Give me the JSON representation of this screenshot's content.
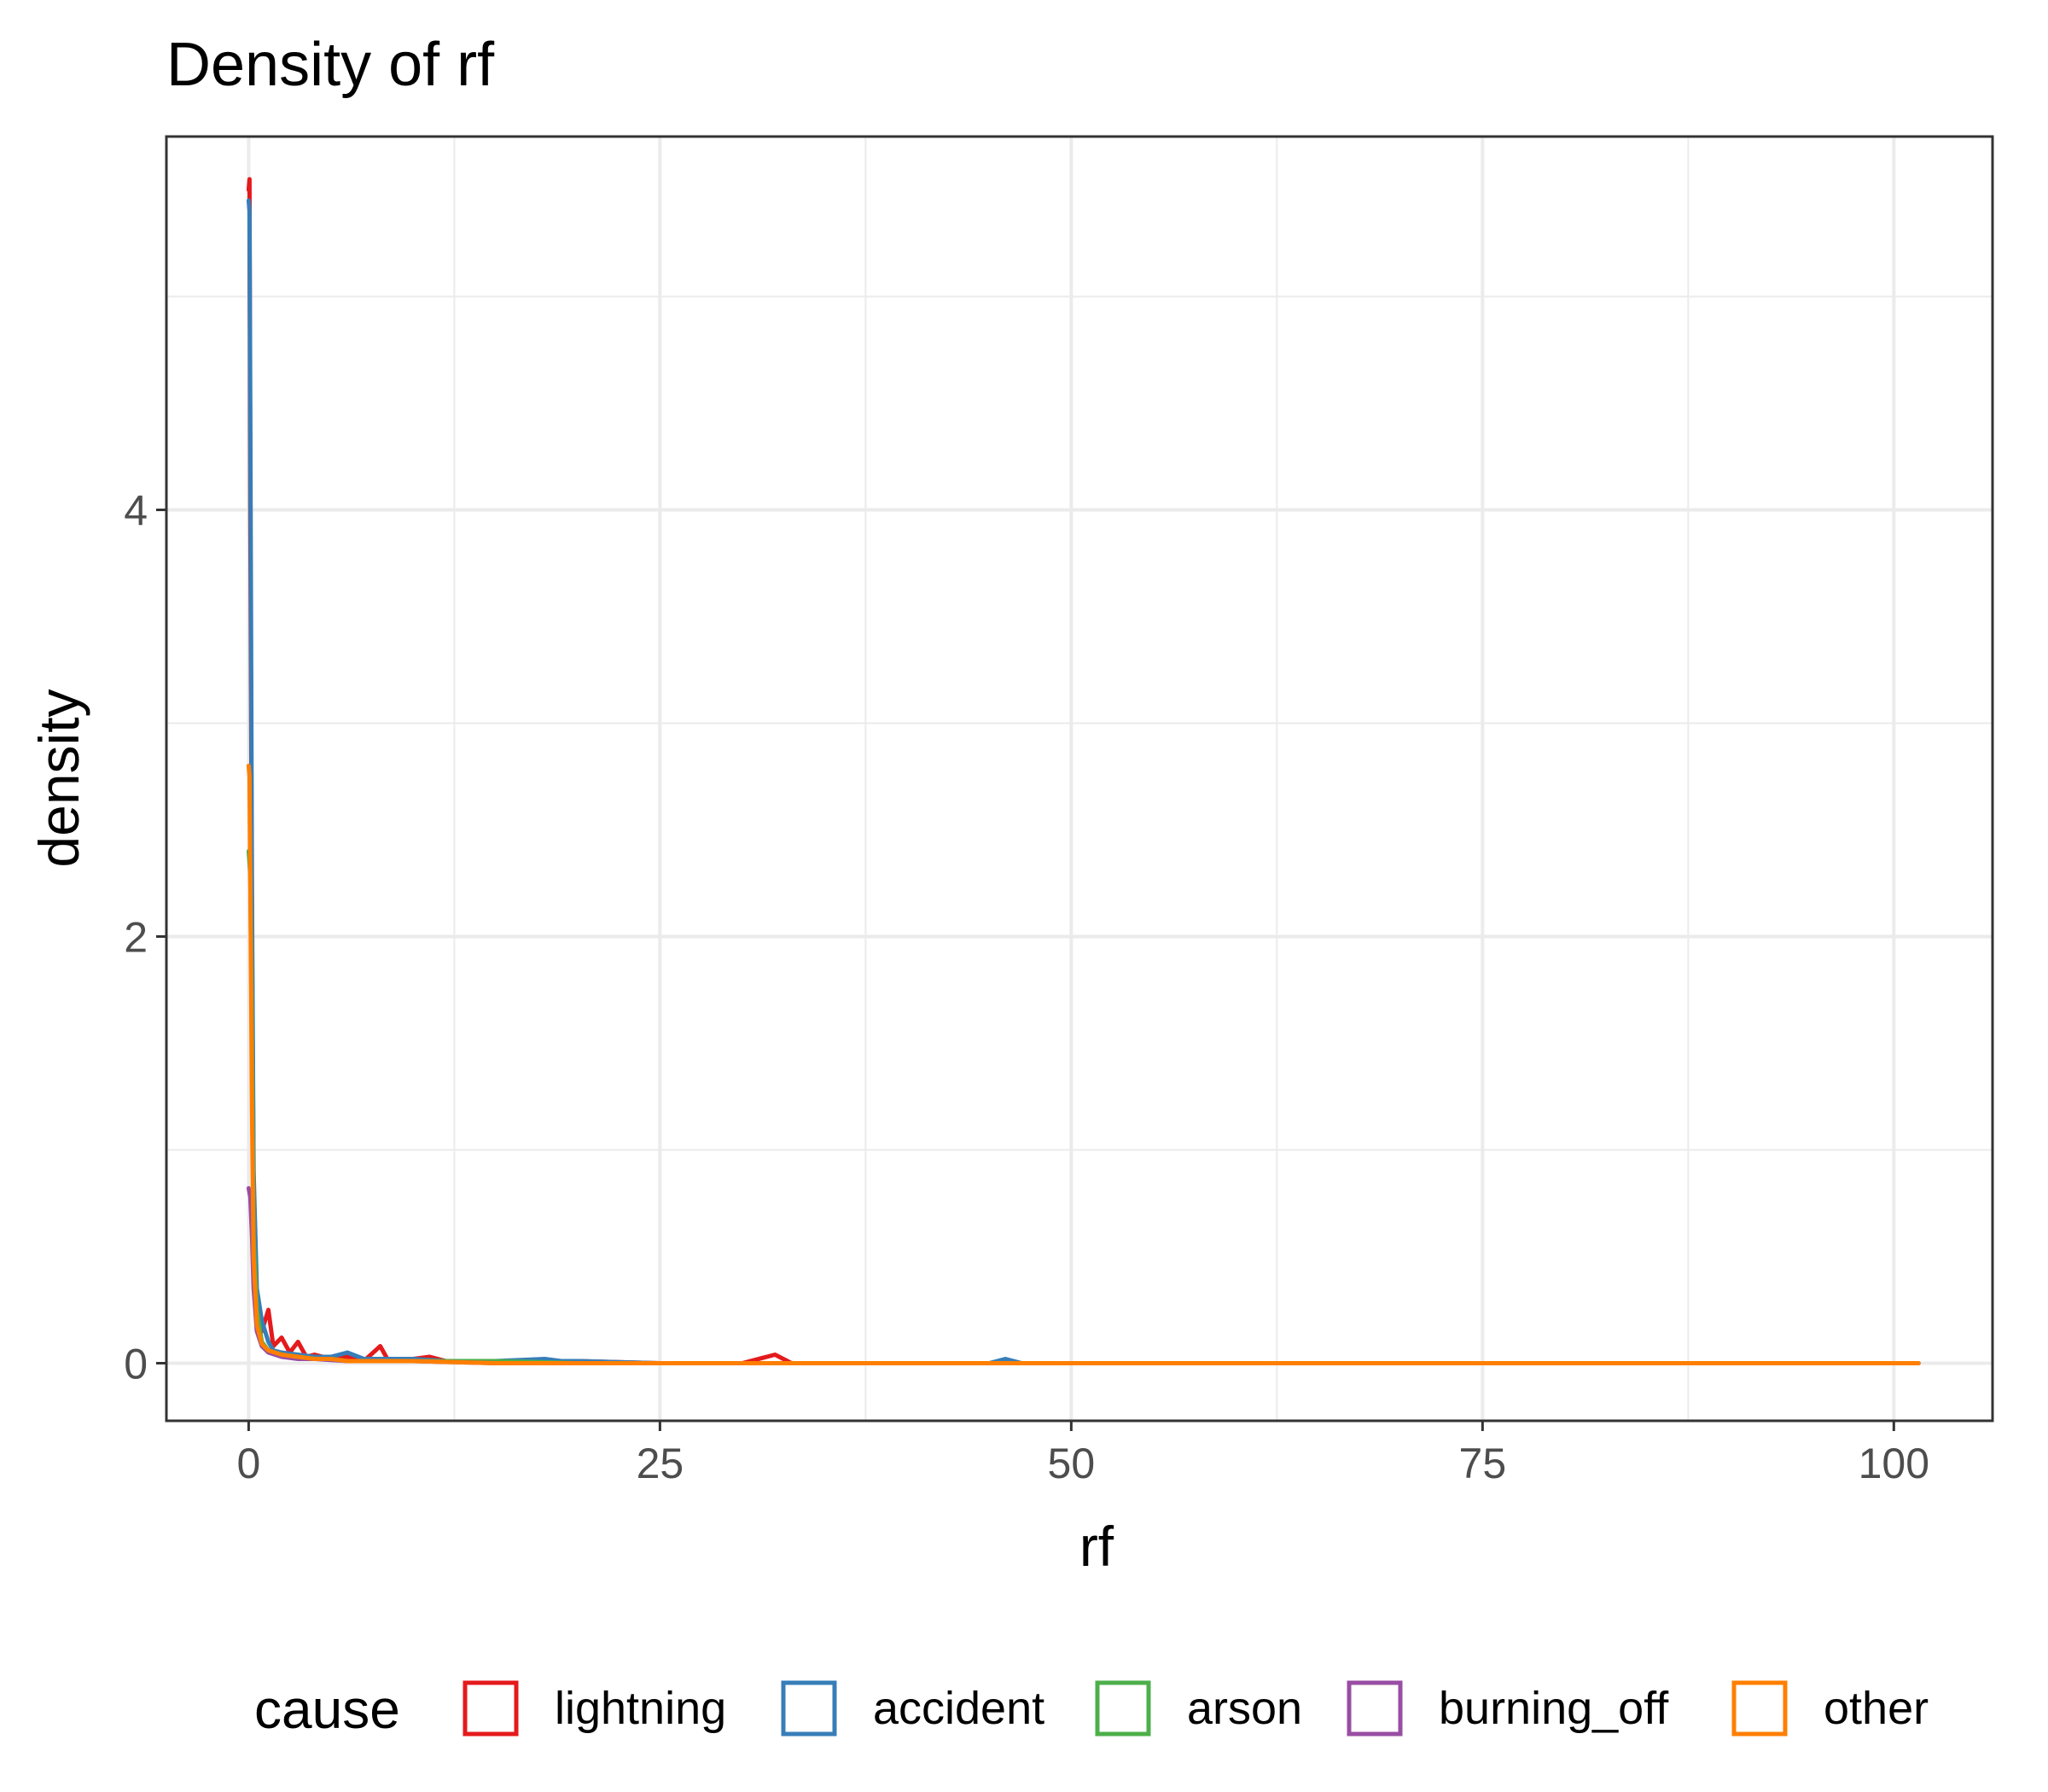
{
  "chart_data": {
    "type": "line",
    "title": "Density of rf",
    "xlabel": "rf",
    "ylabel": "density",
    "xlim": [
      -5,
      106
    ],
    "ylim": [
      -0.27,
      5.75
    ],
    "x_ticks": [
      0,
      25,
      50,
      75,
      100
    ],
    "x_tick_labels": [
      "0",
      "25",
      "50",
      "75",
      "100"
    ],
    "y_ticks": [
      0,
      2,
      4
    ],
    "y_tick_labels": [
      "0",
      "2",
      "4"
    ],
    "x_minor_ticks": [
      12.5,
      37.5,
      62.5,
      87.5
    ],
    "y_minor_ticks": [
      1,
      3,
      5
    ],
    "grid": true,
    "legend": {
      "title": "cause",
      "position": "bottom",
      "entries": [
        "lightning",
        "accident",
        "arson",
        "burning_off",
        "other"
      ]
    },
    "series": [
      {
        "name": "lightning",
        "color": "#E41A1C",
        "x": [
          0,
          0.05,
          0.1,
          0.2,
          0.3,
          0.5,
          0.8,
          1.2,
          1.5,
          2,
          2.5,
          3,
          3.5,
          4,
          5,
          6,
          7,
          8,
          8.5,
          9,
          10,
          11,
          12,
          14,
          16,
          18,
          20,
          25,
          30,
          32,
          33,
          35,
          40,
          50,
          60,
          70,
          80,
          90,
          101.5
        ],
        "y": [
          5.5,
          5.55,
          4.0,
          2.0,
          0.8,
          0.3,
          0.15,
          0.25,
          0.08,
          0.12,
          0.05,
          0.1,
          0.03,
          0.04,
          0.02,
          0.03,
          0.01,
          0.08,
          0.01,
          0.01,
          0.02,
          0.03,
          0.01,
          0.01,
          0.01,
          0.01,
          0.01,
          0.0,
          0.0,
          0.04,
          0.0,
          0.0,
          0.0,
          0.0,
          0.0,
          0.0,
          0.0,
          0.0,
          0.0
        ]
      },
      {
        "name": "accident",
        "color": "#377EB8",
        "x": [
          0,
          0.05,
          0.1,
          0.2,
          0.3,
          0.5,
          0.8,
          1.2,
          1.5,
          2,
          3,
          4,
          5,
          6,
          7,
          8,
          10,
          12,
          15,
          18,
          19,
          20,
          25,
          30,
          35,
          40,
          45,
          46,
          47,
          50,
          60,
          70,
          80,
          90,
          101.5
        ],
        "y": [
          5.45,
          5.4,
          4.5,
          2.2,
          0.9,
          0.35,
          0.2,
          0.1,
          0.06,
          0.05,
          0.04,
          0.03,
          0.03,
          0.05,
          0.02,
          0.02,
          0.02,
          0.01,
          0.01,
          0.02,
          0.01,
          0.01,
          0.0,
          0.0,
          0.0,
          0.0,
          0.0,
          0.02,
          0.0,
          0.0,
          0.0,
          0.0,
          0.0,
          0.0,
          0.0
        ]
      },
      {
        "name": "arson",
        "color": "#4DAF4A",
        "x": [
          0,
          0.1,
          0.2,
          0.3,
          0.5,
          0.8,
          1.2,
          2,
          3,
          4,
          5,
          6,
          8,
          10,
          15,
          20,
          25,
          30,
          40,
          50,
          60,
          70,
          80,
          90,
          101.5
        ],
        "y": [
          2.4,
          2.3,
          1.5,
          0.6,
          0.25,
          0.1,
          0.06,
          0.04,
          0.03,
          0.02,
          0.02,
          0.01,
          0.01,
          0.01,
          0.01,
          0.0,
          0.0,
          0.0,
          0.0,
          0.0,
          0.0,
          0.0,
          0.0,
          0.0,
          0.0
        ]
      },
      {
        "name": "burning_off",
        "color": "#984EA3",
        "x": [
          0,
          0.1,
          0.2,
          0.3,
          0.5,
          0.8,
          1.2,
          2,
          3,
          4,
          6,
          8,
          10,
          15,
          20,
          30,
          40,
          50,
          60,
          70,
          80,
          90,
          101.5
        ],
        "y": [
          0.82,
          0.78,
          0.6,
          0.35,
          0.15,
          0.08,
          0.05,
          0.03,
          0.02,
          0.02,
          0.01,
          0.01,
          0.01,
          0.0,
          0.0,
          0.0,
          0.0,
          0.0,
          0.0,
          0.0,
          0.0,
          0.0,
          0.0
        ]
      },
      {
        "name": "other",
        "color": "#FF7F00",
        "x": [
          0,
          0.05,
          0.1,
          0.2,
          0.3,
          0.5,
          0.8,
          1.2,
          2,
          3,
          4,
          5,
          6,
          8,
          10,
          15,
          20,
          30,
          40,
          50,
          60,
          70,
          80,
          90,
          101.5
        ],
        "y": [
          2.8,
          2.75,
          2.3,
          1.2,
          0.5,
          0.18,
          0.09,
          0.06,
          0.04,
          0.03,
          0.02,
          0.02,
          0.01,
          0.01,
          0.01,
          0.0,
          0.0,
          0.0,
          0.0,
          0.0,
          0.0,
          0.0,
          0.0,
          0.0,
          0.0
        ]
      }
    ]
  }
}
